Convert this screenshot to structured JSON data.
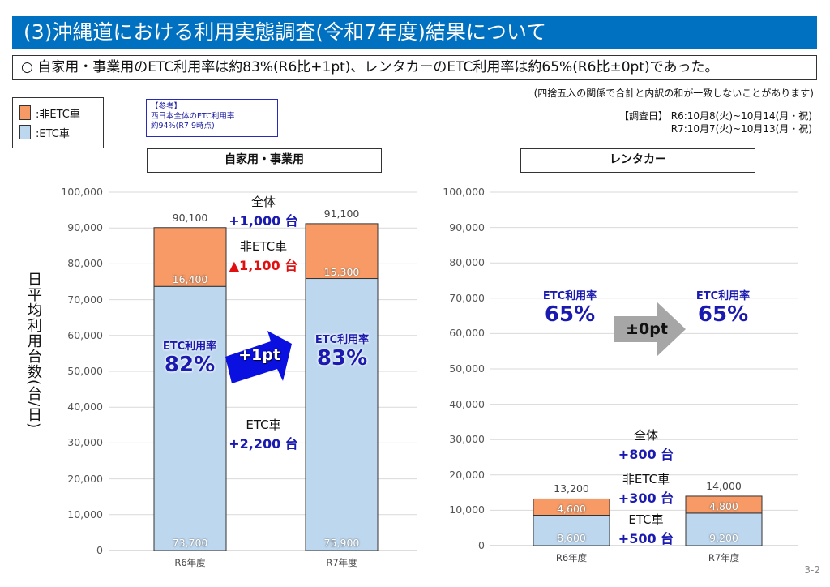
{
  "title": "(3)沖縄道における利用実態調査(令和7年度)結果について",
  "summary": "○ 自家用・事業用のETC利用率は約83%(R6比+1pt)、レンタカーのETC利用率は約65%(R6比±0pt)であった。",
  "note": "(四捨五入の関係で合計と内訳の和が一致しないことがあります)",
  "survey": {
    "line1": "【調査日】 R6:10月8(火)~10月14(月・祝)",
    "line2": "R7:10月7(火)~10月13(月・祝)"
  },
  "legend": {
    "non_etc": ":非ETC車",
    "etc": ":ETC車"
  },
  "reference": {
    "line1": "【参考】",
    "line2": "西日本全体のETC利用率",
    "line3": "約94%(R7.9時点)"
  },
  "ylabel": "日平均利用台数(台/日)",
  "page": "3-2",
  "colors": {
    "non_etc": "#f79a65",
    "etc": "#bdd7ee",
    "title_bg": "#0070c0",
    "arrow_left": "#0a10e0",
    "arrow_right": "#a6a6a6"
  },
  "chart_data": [
    {
      "type": "bar",
      "stacked": true,
      "title": "自家用・事業用",
      "categories": [
        "R6年度",
        "R7年度"
      ],
      "series": [
        {
          "name": "ETC車",
          "values": [
            73700,
            75900
          ]
        },
        {
          "name": "非ETC車",
          "values": [
            16400,
            15300
          ]
        }
      ],
      "totals": [
        "90,100",
        "91,100"
      ],
      "etc_labels": [
        "73,700",
        "75,900"
      ],
      "non_labels": [
        "16,400",
        "15,300"
      ],
      "ylim": [
        0,
        100000
      ],
      "yticks": [
        "0",
        "10,000",
        "20,000",
        "30,000",
        "40,000",
        "50,000",
        "60,000",
        "70,000",
        "80,000",
        "90,000",
        "100,000"
      ],
      "rate_label": "ETC利用率",
      "rates": [
        "82%",
        "83%"
      ],
      "arrow": "+1pt",
      "annotations": {
        "total_k": "全体",
        "total_v": "+1,000 台",
        "non_k": "非ETC車",
        "non_v": "▲1,100 台",
        "etc_k": "ETC車",
        "etc_v": "+2,200 台"
      }
    },
    {
      "type": "bar",
      "stacked": true,
      "title": "レンタカー",
      "categories": [
        "R6年度",
        "R7年度"
      ],
      "series": [
        {
          "name": "ETC車",
          "values": [
            8600,
            9200
          ]
        },
        {
          "name": "非ETC車",
          "values": [
            4600,
            4800
          ]
        }
      ],
      "totals": [
        "13,200",
        "14,000"
      ],
      "etc_labels": [
        "8,600",
        "9,200"
      ],
      "non_labels": [
        "4,600",
        "4,800"
      ],
      "ylim": [
        0,
        100000
      ],
      "yticks": [
        "0",
        "10,000",
        "20,000",
        "30,000",
        "40,000",
        "50,000",
        "60,000",
        "70,000",
        "80,000",
        "90,000",
        "100,000"
      ],
      "rate_label": "ETC利用率",
      "rates": [
        "65%",
        "65%"
      ],
      "arrow": "±0pt",
      "annotations": {
        "total_k": "全体",
        "total_v": "+800 台",
        "non_k": "非ETC車",
        "non_v": "+300 台",
        "etc_k": "ETC車",
        "etc_v": "+500 台"
      }
    }
  ]
}
